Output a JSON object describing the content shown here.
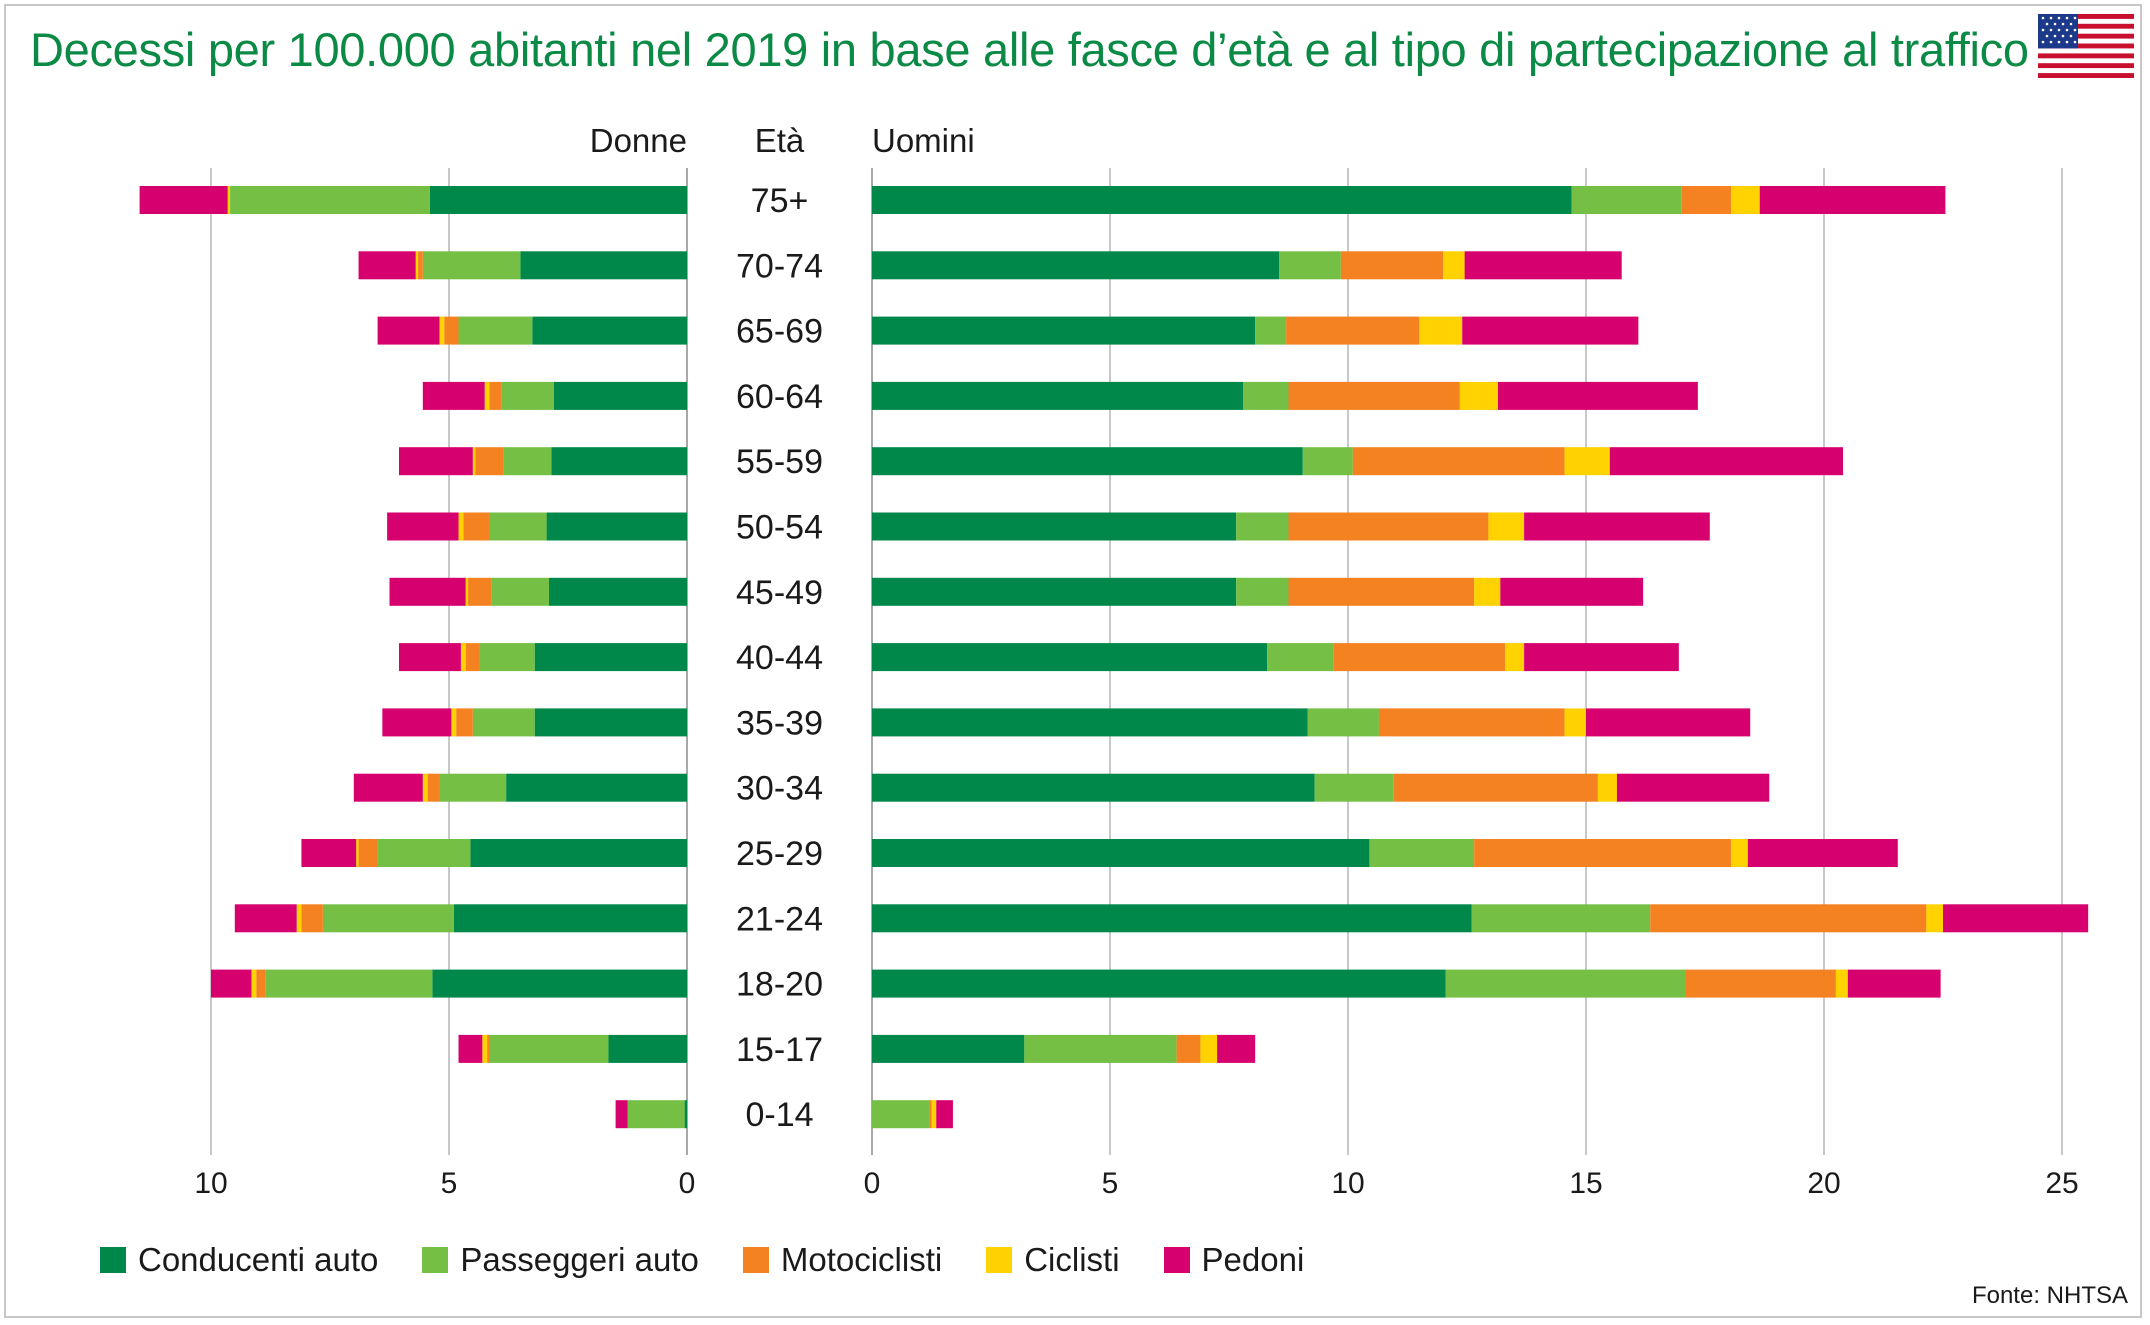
{
  "title": "Decessi per 100.000 abitanti nel 2019 in base alle fasce d’età e al tipo di partecipazione al traffico",
  "source": "Fonte: NHTSA",
  "flag_icon": "usa-flag-icon",
  "colors": {
    "title": "#0b8a45",
    "Conducenti auto": "#00874a",
    "Passeggeri auto": "#74bf44",
    "Motociclisti": "#f58220",
    "Ciclisti": "#ffd200",
    "Pedoni": "#d6006e",
    "grid": "#c8c8c8"
  },
  "chart_data": {
    "type": "bar",
    "orientation": "horizontal",
    "stacked": true,
    "layout": "population-pyramid",
    "title": "Decessi per 100.000 abitanti nel 2019 in base alle fasce d’età e al tipo di partecipazione al traffico",
    "left_label": "Donne",
    "center_label": "Età",
    "right_label": "Uomini",
    "categories": [
      "75+",
      "70-74",
      "65-69",
      "60-64",
      "55-59",
      "50-54",
      "45-49",
      "40-44",
      "35-39",
      "30-34",
      "25-29",
      "21-24",
      "18-20",
      "15-17",
      "0-14"
    ],
    "series_names": [
      "Conducenti auto",
      "Passeggeri auto",
      "Motociclisti",
      "Ciclisti",
      "Pedoni"
    ],
    "left_axis": {
      "ticks": [
        0,
        5,
        10
      ],
      "range": [
        0,
        11.5
      ]
    },
    "right_axis": {
      "ticks": [
        0,
        5,
        10,
        15,
        20,
        25
      ],
      "range": [
        0,
        25.5
      ]
    },
    "women": [
      {
        "name": "Conducenti auto",
        "values": [
          5.4,
          3.5,
          3.25,
          2.8,
          2.85,
          2.95,
          2.9,
          3.2,
          3.2,
          3.8,
          4.55,
          4.9,
          5.35,
          1.65,
          0.05
        ]
      },
      {
        "name": "Passeggeri auto",
        "values": [
          4.2,
          2.05,
          1.55,
          1.1,
          1.0,
          1.2,
          1.2,
          1.15,
          1.3,
          1.4,
          1.95,
          2.75,
          3.5,
          2.5,
          1.2
        ]
      },
      {
        "name": "Motociclisti",
        "values": [
          0.0,
          0.1,
          0.3,
          0.25,
          0.6,
          0.55,
          0.5,
          0.3,
          0.35,
          0.25,
          0.4,
          0.45,
          0.2,
          0.05,
          0.0
        ]
      },
      {
        "name": "Ciclisti",
        "values": [
          0.05,
          0.05,
          0.1,
          0.1,
          0.05,
          0.1,
          0.05,
          0.1,
          0.1,
          0.1,
          0.05,
          0.1,
          0.1,
          0.1,
          0.0
        ]
      },
      {
        "name": "Pedoni",
        "values": [
          1.85,
          1.2,
          1.3,
          1.3,
          1.55,
          1.5,
          1.6,
          1.3,
          1.45,
          1.45,
          1.15,
          1.3,
          0.85,
          0.5,
          0.25
        ]
      }
    ],
    "men": [
      {
        "name": "Conducenti auto",
        "values": [
          14.7,
          8.55,
          8.05,
          7.8,
          9.05,
          7.65,
          7.65,
          8.3,
          9.15,
          9.3,
          10.45,
          12.6,
          12.05,
          3.2,
          0.0
        ]
      },
      {
        "name": "Passeggeri auto",
        "values": [
          2.3,
          1.3,
          0.65,
          0.95,
          1.05,
          1.1,
          1.1,
          1.4,
          1.5,
          1.65,
          2.2,
          3.75,
          5.05,
          3.2,
          1.2
        ]
      },
      {
        "name": "Motociclisti",
        "values": [
          1.05,
          2.15,
          2.8,
          3.6,
          4.45,
          4.2,
          3.9,
          3.6,
          3.9,
          4.3,
          5.4,
          5.8,
          3.15,
          0.5,
          0.05
        ]
      },
      {
        "name": "Ciclisti",
        "values": [
          0.6,
          0.45,
          0.9,
          0.8,
          0.95,
          0.75,
          0.55,
          0.4,
          0.45,
          0.4,
          0.35,
          0.35,
          0.25,
          0.35,
          0.1
        ]
      },
      {
        "name": "Pedoni",
        "values": [
          3.9,
          3.3,
          3.7,
          4.2,
          4.9,
          3.9,
          3.0,
          3.25,
          3.45,
          3.2,
          3.15,
          3.05,
          1.95,
          0.8,
          0.35
        ]
      }
    ],
    "legend": [
      "Conducenti auto",
      "Passeggeri auto",
      "Motociclisti",
      "Ciclisti",
      "Pedoni"
    ],
    "legend_position": "bottom-left",
    "grid": "vertical"
  }
}
